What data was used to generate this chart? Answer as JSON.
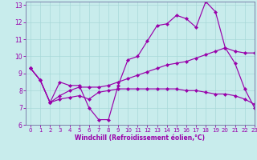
{
  "title": "",
  "xlabel": "Windchill (Refroidissement éolien,°C)",
  "ylabel": "",
  "xlim": [
    -0.5,
    23
  ],
  "ylim": [
    6,
    13.2
  ],
  "xticks": [
    0,
    1,
    2,
    3,
    4,
    5,
    6,
    7,
    8,
    9,
    10,
    11,
    12,
    13,
    14,
    15,
    16,
    17,
    18,
    19,
    20,
    21,
    22,
    23
  ],
  "yticks": [
    6,
    7,
    8,
    9,
    10,
    11,
    12,
    13
  ],
  "bg_color": "#c8ecec",
  "line_color": "#9900aa",
  "grid_color": "#a8d8d8",
  "spine_color": "#7070a0",
  "series1_x": [
    0,
    1,
    2,
    3,
    4,
    5,
    6,
    7,
    8,
    9,
    10,
    11,
    12,
    13,
    14,
    15,
    16,
    17,
    18,
    19,
    20,
    21,
    22,
    23
  ],
  "series1_y": [
    9.3,
    8.6,
    7.3,
    8.5,
    8.3,
    8.3,
    7.0,
    6.3,
    6.3,
    8.3,
    9.8,
    10.0,
    10.9,
    11.8,
    11.9,
    12.4,
    12.2,
    11.7,
    13.2,
    12.6,
    10.5,
    9.6,
    8.1,
    7.0
  ],
  "series2_x": [
    0,
    1,
    2,
    3,
    4,
    5,
    6,
    7,
    8,
    9,
    10,
    11,
    12,
    13,
    14,
    15,
    16,
    17,
    18,
    19,
    20,
    21,
    22,
    23
  ],
  "series2_y": [
    9.3,
    8.6,
    7.3,
    7.7,
    8.0,
    8.2,
    8.2,
    8.2,
    8.3,
    8.5,
    8.7,
    8.9,
    9.1,
    9.3,
    9.5,
    9.6,
    9.7,
    9.9,
    10.1,
    10.3,
    10.5,
    10.3,
    10.2,
    10.2
  ],
  "series3_x": [
    0,
    1,
    2,
    3,
    4,
    5,
    6,
    7,
    8,
    9,
    10,
    11,
    12,
    13,
    14,
    15,
    16,
    17,
    18,
    19,
    20,
    21,
    22,
    23
  ],
  "series3_y": [
    9.3,
    8.6,
    7.3,
    7.5,
    7.6,
    7.7,
    7.5,
    7.9,
    8.0,
    8.1,
    8.1,
    8.1,
    8.1,
    8.1,
    8.1,
    8.1,
    8.0,
    8.0,
    7.9,
    7.8,
    7.8,
    7.7,
    7.5,
    7.2
  ]
}
